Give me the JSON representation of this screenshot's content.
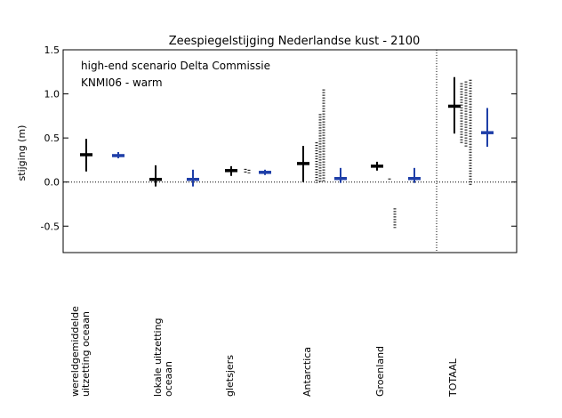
{
  "chart_data": {
    "type": "scatter",
    "title": "Zeespiegelstijging Nederlandse kust - 2100",
    "ylabel": "stijging (m)",
    "xlabel": "",
    "ylim": [
      -0.8,
      1.5
    ],
    "yticks": [
      1.5,
      1.0,
      0.5,
      0.0,
      -0.5
    ],
    "ytick_labels": [
      "1.5",
      "1.0",
      "0.5",
      "0.0",
      "-0.5"
    ],
    "grid": false,
    "zero_line": true,
    "categories": [
      "wereldgemiddelde\nuitzetting oceaan",
      "lokale uitzetting\noceaan",
      "gletsjers",
      "Antarctica",
      "Groenland",
      "TOTAAL"
    ],
    "legend": {
      "placement": "top-left",
      "entries": [
        {
          "label": "high-end scenario Delta Commissie",
          "color": "#000000"
        },
        {
          "label": "KNMI06 - warm",
          "color": "#1f3fa8"
        }
      ]
    },
    "series": [
      {
        "name": "high-end scenario Delta Commissie",
        "color": "#000000",
        "points": [
          {
            "category": 0,
            "value": 0.31,
            "low": 0.12,
            "high": 0.49
          },
          {
            "category": 1,
            "value": 0.03,
            "low": -0.05,
            "high": 0.19
          },
          {
            "category": 2,
            "value": 0.13,
            "low": 0.07,
            "high": 0.18
          },
          {
            "category": 3,
            "value": 0.21,
            "low": 0.0,
            "high": 0.41
          },
          {
            "category": 4,
            "value": 0.18,
            "low": 0.13,
            "high": 0.23
          },
          {
            "category": 5,
            "value": 0.86,
            "low": 0.55,
            "high": 1.19
          }
        ]
      },
      {
        "name": "KNMI06 - warm",
        "color": "#1f3fa8",
        "points": [
          {
            "category": 0,
            "value": 0.3,
            "low": 0.27,
            "high": 0.34
          },
          {
            "category": 1,
            "value": 0.03,
            "low": -0.05,
            "high": 0.14
          },
          {
            "category": 2,
            "value": 0.11,
            "low": 0.08,
            "high": 0.14
          },
          {
            "category": 3,
            "value": 0.04,
            "low": -0.01,
            "high": 0.16
          },
          {
            "category": 4,
            "value": 0.04,
            "low": -0.01,
            "high": 0.16
          },
          {
            "category": 5,
            "value": 0.56,
            "low": 0.4,
            "high": 0.84
          }
        ]
      }
    ],
    "dashed_ranges": [
      {
        "category": 2,
        "low": 0.09,
        "high": 0.15
      },
      {
        "category": 2,
        "low": 0.1,
        "high": 0.14
      },
      {
        "category": 3,
        "low": -0.01,
        "high": 0.45
      },
      {
        "category": 3,
        "low": -0.01,
        "high": 0.77
      },
      {
        "category": 3,
        "low": -0.01,
        "high": 1.05
      },
      {
        "category": 4,
        "low": 0.02,
        "high": 0.04
      },
      {
        "category": 4,
        "low": -0.52,
        "high": -0.3
      },
      {
        "category": 5,
        "low": 0.43,
        "high": 1.12
      },
      {
        "category": 5,
        "low": 0.4,
        "high": 1.14
      },
      {
        "category": 5,
        "low": -0.04,
        "high": 1.16
      }
    ]
  }
}
